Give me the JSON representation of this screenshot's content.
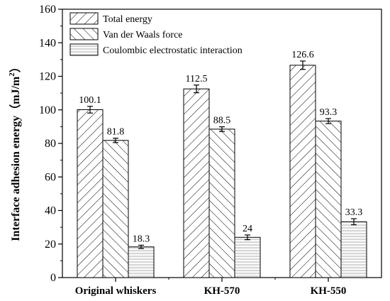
{
  "chart_data": {
    "type": "bar",
    "title": "",
    "xlabel": "",
    "ylabel": "Interface adhesion energy（mJ/m",
    "ylabel_sup": "2",
    "ylabel_tail": "）",
    "ylim": [
      0,
      160
    ],
    "yticks": [
      "0",
      "20",
      "40",
      "60",
      "80",
      "100",
      "120",
      "140",
      "160"
    ],
    "categories": [
      "Original whiskers",
      "KH-570",
      "KH-550"
    ],
    "series": [
      {
        "name": "Total energy",
        "pattern": "diag-right",
        "values": [
          100.1,
          112.5,
          126.6
        ],
        "labels": [
          "100.1",
          "112.5",
          "126.6"
        ],
        "errors": [
          2.0,
          2.3,
          2.5
        ]
      },
      {
        "name": "Van der Waals force",
        "pattern": "diag-left",
        "values": [
          81.8,
          88.5,
          93.3
        ],
        "labels": [
          "81.8",
          "88.5",
          "93.3"
        ],
        "errors": [
          1.3,
          1.4,
          1.5
        ]
      },
      {
        "name": "Coulombic electrostatic interaction",
        "pattern": "horizontal-gray",
        "values": [
          18.3,
          24,
          33.3
        ],
        "labels": [
          "18.3",
          "24",
          "33.3"
        ],
        "errors": [
          1.0,
          1.4,
          1.8
        ]
      }
    ],
    "legend_position": "top-left",
    "grid": false,
    "colors": {
      "line": "#000000",
      "fill_gray": "#d9d9d9",
      "background": "#ffffff"
    }
  }
}
